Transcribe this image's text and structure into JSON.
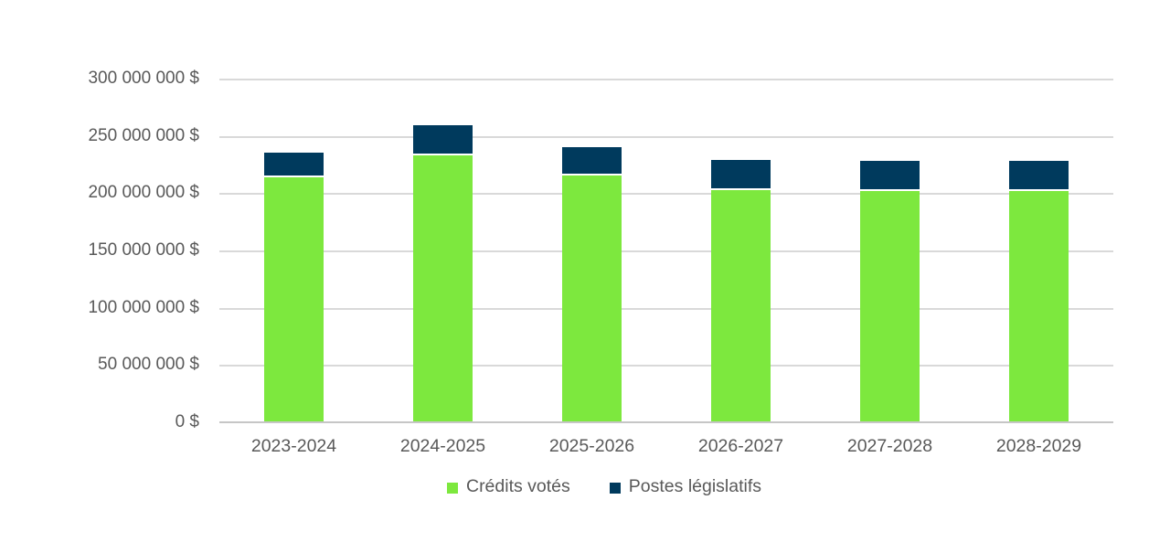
{
  "chart_data": {
    "type": "bar",
    "stacked": true,
    "title": "",
    "xlabel": "",
    "ylabel": "",
    "ylim": [
      0,
      300000000
    ],
    "grid": "horizontal",
    "legend_position": "bottom",
    "categories": [
      "2023-2024",
      "2024-2025",
      "2025-2026",
      "2026-2027",
      "2027-2028",
      "2028-2029"
    ],
    "series": [
      {
        "name": "Crédits votés",
        "slug": "credits-votes",
        "color": "#7de83e",
        "values": [
          213500000,
          233000000,
          215500000,
          202700000,
          202300000,
          202000000
        ]
      },
      {
        "name": "Postes législatifs",
        "slug": "postes-legislatifs",
        "color": "#003a5d",
        "values": [
          21600000,
          26000000,
          24500000,
          26500000,
          26300000,
          26400000
        ]
      }
    ],
    "y_ticks": [
      {
        "value": 0,
        "label": "0 $"
      },
      {
        "value": 50000000,
        "label": "50 000 000 $"
      },
      {
        "value": 100000000,
        "label": "100 000 000 $"
      },
      {
        "value": 150000000,
        "label": "150 000 000 $"
      },
      {
        "value": 200000000,
        "label": "200 000 000 $"
      },
      {
        "value": 250000000,
        "label": "250 000 000 $"
      },
      {
        "value": 300000000,
        "label": "300 000 000 $"
      }
    ]
  },
  "colors": {
    "background": "#ffffff",
    "gridline": "#d9d9d9",
    "axis_line": "#c6c6c6",
    "label_text": "#595959",
    "series_green": "#7de83e",
    "series_navy": "#003a5d",
    "segment_separator": "#ffffff"
  }
}
